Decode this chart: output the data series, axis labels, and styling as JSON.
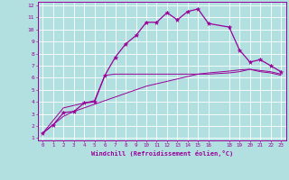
{
  "xlabel": "Windchill (Refroidissement éolien,°C)",
  "background_color": "#b2e0e0",
  "grid_color": "#ffffff",
  "line_color": "#990099",
  "xlim": [
    -0.5,
    23.5
  ],
  "ylim": [
    0.8,
    12.3
  ],
  "xticks": [
    0,
    1,
    2,
    3,
    4,
    5,
    6,
    7,
    8,
    9,
    10,
    11,
    12,
    13,
    14,
    15,
    16,
    18,
    19,
    20,
    21,
    22,
    23
  ],
  "yticks": [
    1,
    2,
    3,
    4,
    5,
    6,
    7,
    8,
    9,
    10,
    11,
    12
  ],
  "curve1_x": [
    0,
    1,
    2,
    3,
    4,
    5,
    6,
    7,
    8,
    9,
    10,
    11,
    12,
    13,
    14,
    15,
    16,
    18,
    19,
    20,
    21,
    22,
    23
  ],
  "curve1_y": [
    1.4,
    2.1,
    3.1,
    3.2,
    3.9,
    4.0,
    6.2,
    7.7,
    8.8,
    9.5,
    10.6,
    10.6,
    11.4,
    10.8,
    11.5,
    11.7,
    10.5,
    10.2,
    8.3,
    7.3,
    7.5,
    7.0,
    6.5
  ],
  "curve2_x": [
    0,
    2,
    3,
    4,
    5,
    6,
    7,
    8,
    9,
    10,
    11,
    12,
    13,
    14,
    15,
    16,
    18,
    19,
    20,
    21,
    22,
    23
  ],
  "curve2_y": [
    1.4,
    3.5,
    3.7,
    3.9,
    4.1,
    6.2,
    6.3,
    6.3,
    6.3,
    6.3,
    6.3,
    6.3,
    6.3,
    6.3,
    6.3,
    6.3,
    6.4,
    6.5,
    6.7,
    6.5,
    6.4,
    6.2
  ],
  "curve3_x": [
    0,
    1,
    2,
    3,
    4,
    5,
    6,
    7,
    8,
    9,
    10,
    11,
    12,
    13,
    14,
    15,
    16,
    18,
    19,
    20,
    21,
    22,
    23
  ],
  "curve3_y": [
    1.4,
    2.1,
    2.8,
    3.2,
    3.5,
    3.8,
    4.1,
    4.4,
    4.7,
    5.0,
    5.3,
    5.5,
    5.7,
    5.9,
    6.1,
    6.3,
    6.4,
    6.55,
    6.65,
    6.7,
    6.6,
    6.5,
    6.3
  ]
}
